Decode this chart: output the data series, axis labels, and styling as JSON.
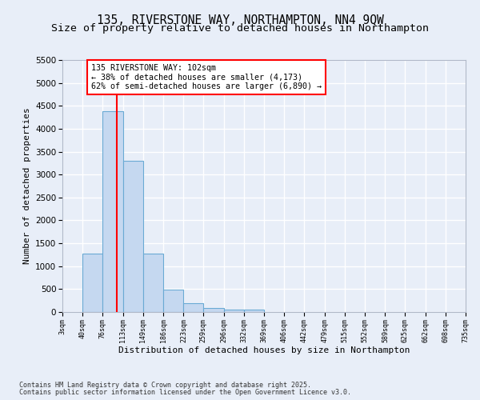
{
  "title1": "135, RIVERSTONE WAY, NORTHAMPTON, NN4 9QW",
  "title2": "Size of property relative to detached houses in Northampton",
  "xlabel": "Distribution of detached houses by size in Northampton",
  "ylabel": "Number of detached properties",
  "bin_edges": [
    3,
    40,
    76,
    113,
    149,
    186,
    223,
    259,
    296,
    332,
    369,
    406,
    442,
    479,
    515,
    552,
    589,
    625,
    662,
    698,
    735
  ],
  "bar_heights": [
    0,
    1270,
    4380,
    3300,
    1280,
    490,
    200,
    90,
    60,
    50,
    0,
    0,
    0,
    0,
    0,
    0,
    0,
    0,
    0,
    0
  ],
  "bar_color": "#c5d8f0",
  "bar_edgecolor": "#6aaad4",
  "vline_x": 102,
  "vline_color": "red",
  "ylim": [
    0,
    5500
  ],
  "yticks": [
    0,
    500,
    1000,
    1500,
    2000,
    2500,
    3000,
    3500,
    4000,
    4500,
    5000,
    5500
  ],
  "annotation_title": "135 RIVERSTONE WAY: 102sqm",
  "annotation_line2": "← 38% of detached houses are smaller (4,173)",
  "annotation_line3": "62% of semi-detached houses are larger (6,890) →",
  "annotation_box_color": "red",
  "annotation_bg": "white",
  "footer1": "Contains HM Land Registry data © Crown copyright and database right 2025.",
  "footer2": "Contains public sector information licensed under the Open Government Licence v3.0.",
  "background_color": "#e8eef8",
  "grid_color": "white",
  "title_fontsize": 10.5,
  "subtitle_fontsize": 9.5
}
